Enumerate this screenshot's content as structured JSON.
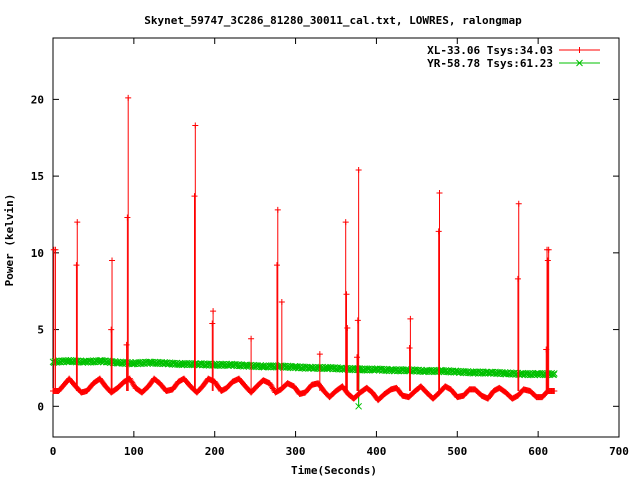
{
  "chart_data": {
    "type": "line",
    "title": "Skynet_59747_3C286_81280_30011_cal.txt, LOWRES, ralongmap",
    "xlabel": "Time(Seconds)",
    "ylabel": "Power (kelvin)",
    "xlim": [
      0,
      700
    ],
    "ylim": [
      -2,
      24
    ],
    "xticks": [
      0,
      100,
      200,
      300,
      400,
      500,
      600,
      700
    ],
    "yticks": [
      0,
      5,
      10,
      15,
      20
    ],
    "grid": false,
    "legend_position": "top-right",
    "series": [
      {
        "name": "XL-33.06 Tsys:34.03",
        "color": "#ff0000",
        "marker": "plus",
        "baseline": {
          "x": [
            0,
            7,
            12,
            20,
            28,
            35,
            42,
            50,
            58,
            65,
            72,
            80,
            88,
            95,
            102,
            110,
            118,
            125,
            132,
            140,
            148,
            155,
            162,
            170,
            178,
            185,
            192,
            200,
            208,
            215,
            222,
            230,
            238,
            245,
            252,
            260,
            268,
            275,
            282,
            290,
            298,
            305,
            312,
            320,
            328,
            335,
            342,
            350,
            358,
            365,
            372,
            380,
            388,
            395,
            402,
            410,
            418,
            425,
            432,
            440,
            448,
            455,
            462,
            470,
            478,
            485,
            492,
            500,
            508,
            515,
            522,
            530,
            538,
            545,
            552,
            560,
            568,
            575,
            582,
            590,
            598,
            605,
            612,
            620
          ],
          "y": [
            1.0,
            1.0,
            1.3,
            1.8,
            1.3,
            0.9,
            1.0,
            1.5,
            1.8,
            1.3,
            0.9,
            1.2,
            1.6,
            1.8,
            1.2,
            0.9,
            1.3,
            1.8,
            1.5,
            1.0,
            1.1,
            1.6,
            1.8,
            1.3,
            0.9,
            1.3,
            1.8,
            1.6,
            1.0,
            1.2,
            1.6,
            1.8,
            1.3,
            0.9,
            1.3,
            1.7,
            1.5,
            0.9,
            1.1,
            1.5,
            1.3,
            0.8,
            0.9,
            1.4,
            1.5,
            1.0,
            0.6,
            1.0,
            1.3,
            0.8,
            0.5,
            0.9,
            1.2,
            0.9,
            0.4,
            0.8,
            1.1,
            1.2,
            0.7,
            0.6,
            1.0,
            1.3,
            0.9,
            0.5,
            0.9,
            1.3,
            1.1,
            0.6,
            0.7,
            1.1,
            1.1,
            0.7,
            0.5,
            1.0,
            1.2,
            0.9,
            0.5,
            0.7,
            1.1,
            1.0,
            0.6,
            0.6,
            1.0,
            1.0
          ]
        },
        "spikes": [
          {
            "x": 1,
            "y": 10.2
          },
          {
            "x": 3,
            "y": 10.2
          },
          {
            "x": 30,
            "y": 12.0
          },
          {
            "x": 29,
            "y": 9.2
          },
          {
            "x": 73,
            "y": 9.5
          },
          {
            "x": 72,
            "y": 5.0
          },
          {
            "x": 93,
            "y": 20.1
          },
          {
            "x": 92,
            "y": 12.3
          },
          {
            "x": 91,
            "y": 4.0
          },
          {
            "x": 176,
            "y": 18.3
          },
          {
            "x": 175,
            "y": 13.7
          },
          {
            "x": 198,
            "y": 6.2
          },
          {
            "x": 197,
            "y": 5.4
          },
          {
            "x": 245,
            "y": 4.4
          },
          {
            "x": 278,
            "y": 12.8
          },
          {
            "x": 277,
            "y": 9.2
          },
          {
            "x": 283,
            "y": 6.8
          },
          {
            "x": 330,
            "y": 3.4
          },
          {
            "x": 362,
            "y": 12.0
          },
          {
            "x": 363,
            "y": 7.3
          },
          {
            "x": 364,
            "y": 5.1
          },
          {
            "x": 378,
            "y": 15.4
          },
          {
            "x": 377,
            "y": 5.6
          },
          {
            "x": 376,
            "y": 3.2
          },
          {
            "x": 442,
            "y": 5.7
          },
          {
            "x": 441,
            "y": 3.8
          },
          {
            "x": 478,
            "y": 13.9
          },
          {
            "x": 477,
            "y": 11.4
          },
          {
            "x": 576,
            "y": 13.2
          },
          {
            "x": 575,
            "y": 8.3
          },
          {
            "x": 611,
            "y": 10.2
          },
          {
            "x": 613,
            "y": 10.2
          },
          {
            "x": 612,
            "y": 9.5
          },
          {
            "x": 610,
            "y": 3.7
          }
        ]
      },
      {
        "name": "YR-58.78 Tsys:61.23",
        "color": "#00c000",
        "marker": "cross",
        "x": [
          0,
          20,
          40,
          60,
          80,
          100,
          120,
          140,
          160,
          180,
          200,
          220,
          240,
          260,
          280,
          300,
          320,
          340,
          360,
          380,
          400,
          420,
          440,
          460,
          480,
          500,
          520,
          540,
          560,
          580,
          600,
          620
        ],
        "y": [
          2.9,
          2.95,
          2.9,
          2.95,
          2.85,
          2.8,
          2.85,
          2.8,
          2.75,
          2.75,
          2.7,
          2.7,
          2.65,
          2.6,
          2.6,
          2.55,
          2.5,
          2.5,
          2.45,
          2.4,
          2.4,
          2.35,
          2.35,
          2.3,
          2.3,
          2.25,
          2.2,
          2.2,
          2.15,
          2.1,
          2.1,
          2.1
        ],
        "dip": {
          "x": 378,
          "y": 0.0
        }
      }
    ]
  }
}
